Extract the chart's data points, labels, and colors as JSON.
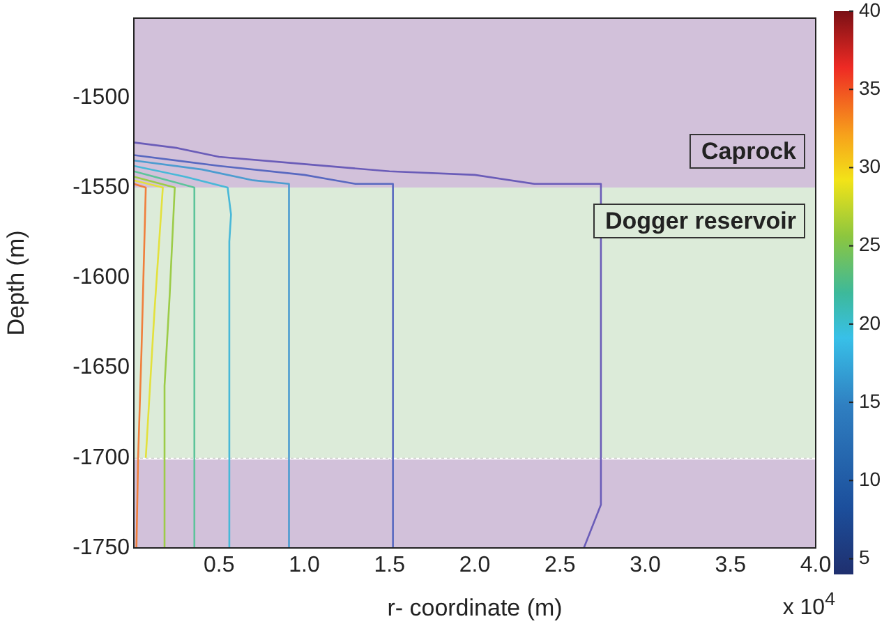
{
  "chart_data": {
    "type": "line",
    "xlabel": "r- coordinate (m)",
    "ylabel": "Depth (m)",
    "xlim": [
      0,
      4
    ],
    "ylim": [
      -1750,
      -1456
    ],
    "xticks": [
      0.5,
      {
        "value": 1,
        "label": "1.0"
      },
      1.5,
      {
        "value": 2,
        "label": "2.0"
      },
      2.5,
      {
        "value": 3,
        "label": "3.0"
      },
      3.5,
      {
        "value": 4,
        "label": "4.0"
      }
    ],
    "yticks": [
      -1750,
      -1700,
      -1650,
      -1600,
      -1550,
      -1500
    ],
    "grid": true,
    "legend": false,
    "clim": [
      4,
      40
    ],
    "cticks": [
      5,
      10,
      15,
      20,
      25,
      30,
      35,
      40
    ],
    "annotations": [
      "x 10$^{4}$"
    ],
    "bands": [
      {
        "axis": "y",
        "from": -1456,
        "to": -1550,
        "label": "Caprock",
        "color": "#d2c1da"
      },
      {
        "axis": "y",
        "from": -1700,
        "to": -1550,
        "label": "Dogger reservoir",
        "color": "#dcebd9"
      },
      {
        "axis": "y",
        "from": -1750,
        "to": -1701,
        "color": "#d2c1da"
      }
    ],
    "series": [
      {
        "color": "#6a5cb8",
        "x": [
          0,
          0.25,
          0.5,
          1,
          1.5,
          2,
          2.35,
          2.74,
          2.74,
          2.64
        ],
        "values": [
          -1525,
          -1528,
          -1533,
          -1537,
          -1541,
          -1543,
          -1548,
          -1548,
          -1726,
          -1750
        ]
      },
      {
        "color": "#5868c0",
        "x": [
          0,
          0.5,
          1,
          1.3,
          1.52,
          1.52
        ],
        "values": [
          -1532,
          -1538,
          -1543,
          -1548,
          -1548,
          -1750
        ]
      },
      {
        "color": "#4c9cd0",
        "x": [
          0,
          0.4,
          0.7,
          0.91,
          0.91
        ],
        "values": [
          -1535,
          -1540,
          -1546,
          -1548,
          -1750
        ]
      },
      {
        "color": "#48b8d8",
        "x": [
          0,
          0.3,
          0.55,
          0.57,
          0.56,
          0.56
        ],
        "values": [
          -1538,
          -1544,
          -1550,
          -1565,
          -1580,
          -1750
        ]
      },
      {
        "color": "#5cc49a",
        "x": [
          0,
          0.2,
          0.355,
          0.355
        ],
        "values": [
          -1541,
          -1546,
          -1550,
          -1750
        ]
      },
      {
        "color": "#9ccc48",
        "x": [
          0,
          0.24,
          0.21,
          0.18,
          0.18
        ],
        "values": [
          -1544,
          -1550,
          -1610,
          -1660,
          -1750
        ]
      },
      {
        "color": "#e3e13c",
        "x": [
          0,
          0.17,
          0.12,
          0.07
        ],
        "values": [
          -1546,
          -1550,
          -1620,
          -1700
        ]
      },
      {
        "color": "#f07f3c",
        "x": [
          0,
          0.07,
          0.045,
          0.025,
          0.015
        ],
        "values": [
          -1548,
          -1550,
          -1640,
          -1700,
          -1750
        ]
      }
    ]
  }
}
